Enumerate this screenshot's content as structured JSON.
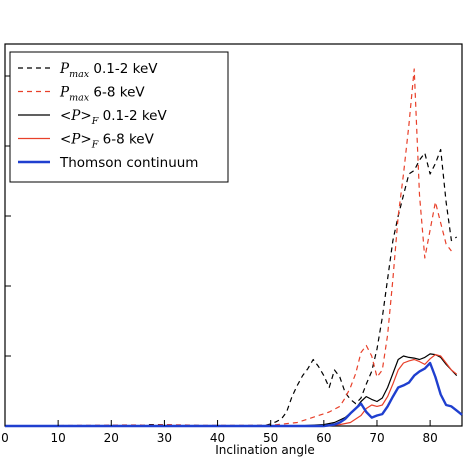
{
  "chart_data": {
    "type": "line",
    "title": "",
    "xlabel": "Inclination angle",
    "ylabel": "",
    "xlim": [
      0,
      86
    ],
    "xticks": [
      0,
      10,
      20,
      30,
      40,
      50,
      60,
      70,
      80
    ],
    "tick_labels": [
      "0",
      "10",
      "20",
      "30",
      "40",
      "50",
      "60",
      "70",
      "80"
    ],
    "legend_position": "upper-left",
    "grid": false,
    "series": [
      {
        "name": "P_max 0.1-2 keV",
        "legend_main": "P",
        "legend_sub": "max",
        "legend_rest": " 0.1-2 keV",
        "color": "#000000",
        "dash": "5,4",
        "width": 1.2,
        "x": [
          0,
          25,
          27,
          29,
          31,
          33,
          35,
          37,
          40,
          45,
          49,
          50,
          51,
          52,
          53,
          54,
          55,
          56,
          57,
          58,
          59,
          60,
          61,
          62,
          63,
          64,
          65,
          66,
          67,
          68,
          69,
          70,
          71,
          72,
          73,
          74,
          75,
          76,
          77,
          78,
          79,
          80,
          81,
          82,
          83,
          84,
          85
        ],
        "y": [
          0.0,
          0.0,
          0.02,
          0.02,
          0.015,
          0.01,
          0.01,
          0.005,
          0.005,
          0.005,
          0.01,
          0.03,
          0.06,
          0.1,
          0.2,
          0.42,
          0.58,
          0.72,
          0.82,
          0.95,
          0.85,
          0.72,
          0.55,
          0.8,
          0.7,
          0.48,
          0.38,
          0.32,
          0.4,
          0.6,
          0.78,
          1.1,
          1.55,
          2.1,
          2.65,
          3.0,
          3.3,
          3.6,
          3.65,
          3.8,
          3.9,
          3.6,
          3.75,
          3.95,
          3.2,
          2.65,
          2.7
        ]
      },
      {
        "name": "P_max 6-8 keV",
        "legend_main": "P",
        "legend_sub": "max",
        "legend_rest": " 6-8 keV",
        "color": "#e8402a",
        "dash": "5,4",
        "width": 1.2,
        "x": [
          0,
          25,
          27,
          30,
          33,
          36,
          40,
          45,
          50,
          55,
          57,
          59,
          61,
          63,
          64,
          65,
          66,
          67,
          68,
          69,
          70,
          71,
          72,
          73,
          74,
          75,
          76,
          77,
          78,
          79,
          80,
          81,
          82,
          83,
          84
        ],
        "y": [
          0.0,
          0.015,
          0.01,
          0.02,
          0.015,
          0.01,
          0.01,
          0.01,
          0.01,
          0.05,
          0.1,
          0.15,
          0.2,
          0.28,
          0.4,
          0.55,
          0.75,
          1.05,
          1.15,
          1.0,
          0.7,
          0.8,
          1.3,
          2.1,
          3.0,
          3.6,
          4.3,
          5.1,
          3.3,
          2.4,
          2.8,
          3.2,
          2.9,
          2.6,
          2.5
        ]
      },
      {
        "name": "<P>_F 0.1-2 keV",
        "legend_main": "<P>",
        "legend_sub": "F",
        "legend_rest": " 0.1-2 keV",
        "color": "#000000",
        "dash": "",
        "width": 1.2,
        "x": [
          0,
          55,
          60,
          62,
          64,
          66,
          67,
          68,
          69,
          70,
          71,
          72,
          73,
          74,
          75,
          76,
          77,
          78,
          79,
          80,
          81,
          82,
          83,
          84,
          85
        ],
        "y": [
          0.0,
          0.0,
          0.02,
          0.05,
          0.12,
          0.25,
          0.35,
          0.42,
          0.38,
          0.35,
          0.4,
          0.55,
          0.75,
          0.95,
          1.0,
          0.98,
          0.97,
          0.95,
          0.98,
          1.03,
          1.02,
          0.98,
          0.88,
          0.8,
          0.72
        ]
      },
      {
        "name": "<P>_F 6-8 keV",
        "legend_main": "<P>",
        "legend_sub": "F",
        "legend_rest": " 6-8 keV",
        "color": "#e8402a",
        "dash": "",
        "width": 1.2,
        "x": [
          0,
          60,
          63,
          65,
          66,
          67,
          68,
          69,
          70,
          71,
          72,
          73,
          74,
          75,
          76,
          77,
          78,
          79,
          80,
          81,
          82,
          83,
          84,
          85
        ],
        "y": [
          0.0,
          0.0,
          0.02,
          0.05,
          0.1,
          0.15,
          0.25,
          0.3,
          0.28,
          0.3,
          0.42,
          0.6,
          0.8,
          0.9,
          0.93,
          0.95,
          0.92,
          0.88,
          0.96,
          1.02,
          1.0,
          0.9,
          0.8,
          0.74
        ]
      },
      {
        "name": "Thomson continuum",
        "legend_main": "Thomson continuum",
        "legend_sub": "",
        "legend_rest": "",
        "color": "#1f3fcf",
        "dash": "",
        "width": 2.4,
        "x": [
          0,
          60,
          62,
          63,
          64,
          65,
          66,
          67,
          68,
          69,
          70,
          71,
          72,
          73,
          74,
          75,
          76,
          77,
          78,
          79,
          80,
          81,
          82,
          83,
          84,
          85,
          86
        ],
        "y": [
          0.0,
          0.0,
          0.02,
          0.05,
          0.1,
          0.18,
          0.25,
          0.32,
          0.2,
          0.12,
          0.15,
          0.17,
          0.28,
          0.42,
          0.55,
          0.58,
          0.62,
          0.72,
          0.78,
          0.82,
          0.9,
          0.7,
          0.45,
          0.3,
          0.28,
          0.22,
          0.16
        ]
      }
    ]
  }
}
